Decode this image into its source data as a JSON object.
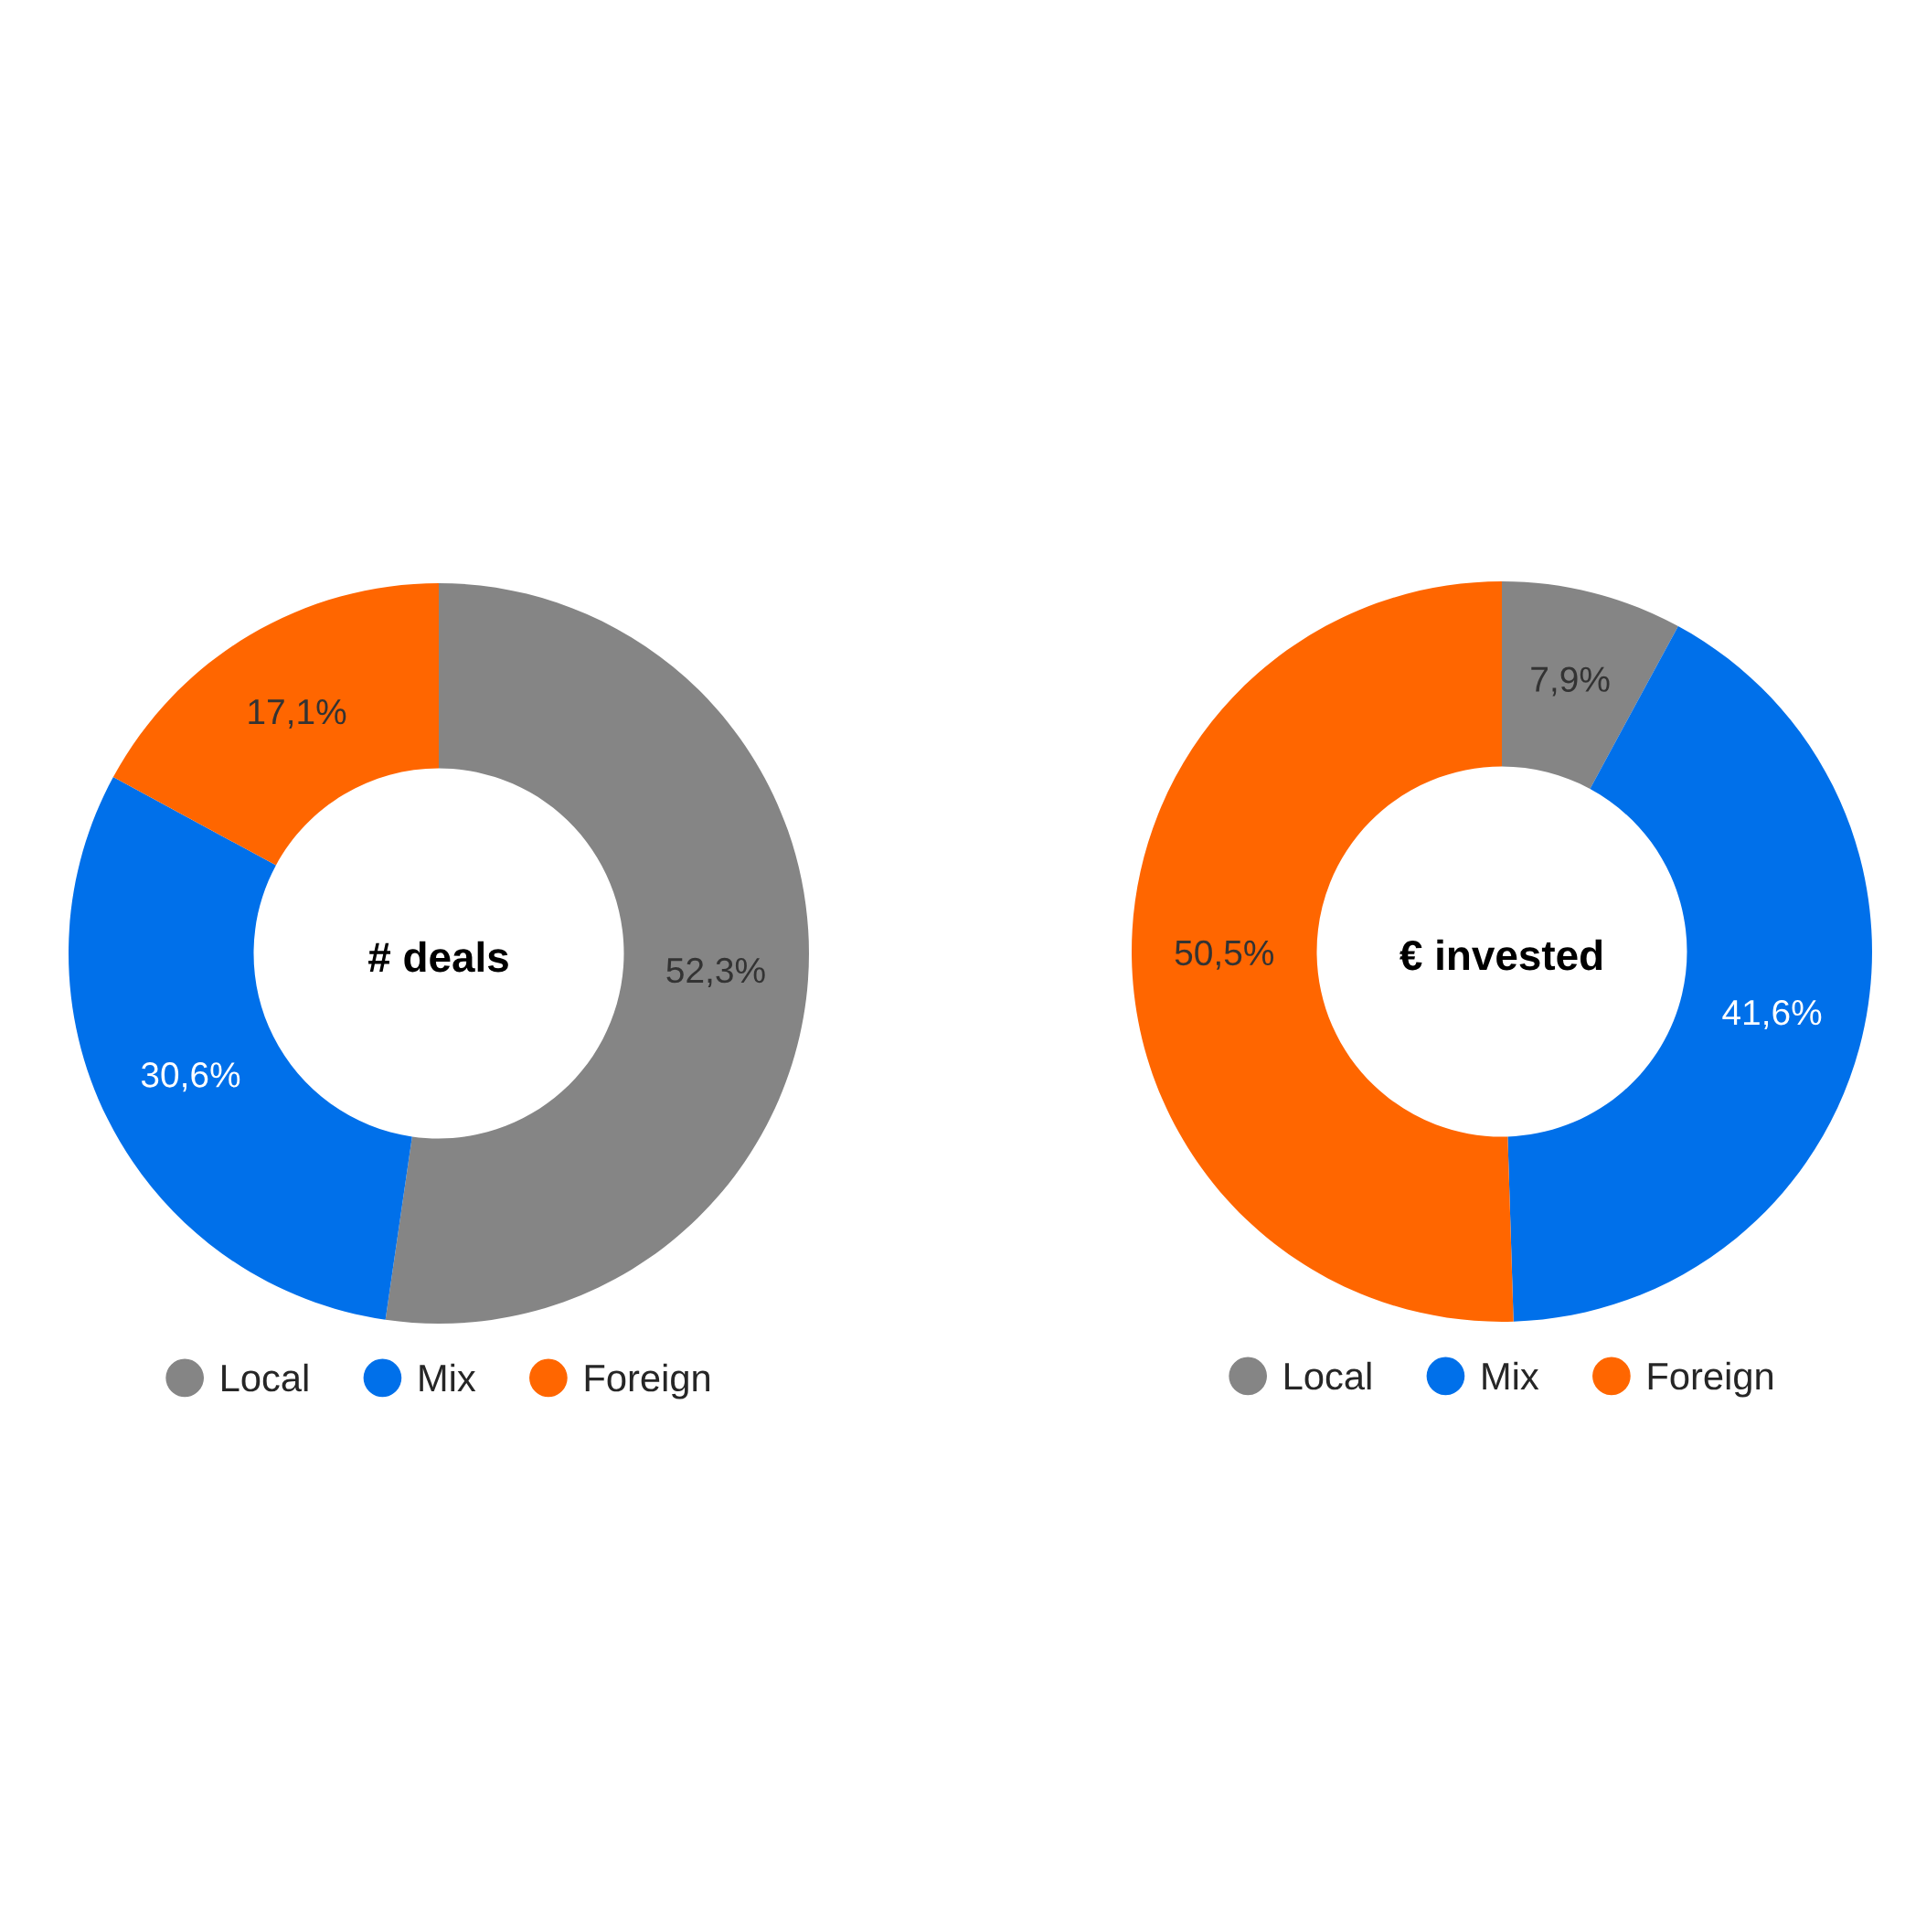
{
  "chart_data": [
    {
      "type": "donut",
      "title": "# deals",
      "categories": [
        "Local",
        "Mix",
        "Foreign"
      ],
      "values": [
        52.3,
        30.6,
        17.1
      ],
      "colors": [
        "#858585",
        "#0070ea",
        "#ff6600"
      ],
      "value_labels": [
        "52,3%",
        "30,6%",
        "17,1%"
      ],
      "legend": "bottom"
    },
    {
      "type": "donut",
      "title": "€ invested",
      "categories": [
        "Local",
        "Mix",
        "Foreign"
      ],
      "values": [
        7.9,
        41.6,
        50.5
      ],
      "colors": [
        "#858585",
        "#0070ea",
        "#ff6600"
      ],
      "value_labels": [
        "7,9%",
        "41,6%",
        "50,5%"
      ],
      "legend": "bottom"
    }
  ]
}
